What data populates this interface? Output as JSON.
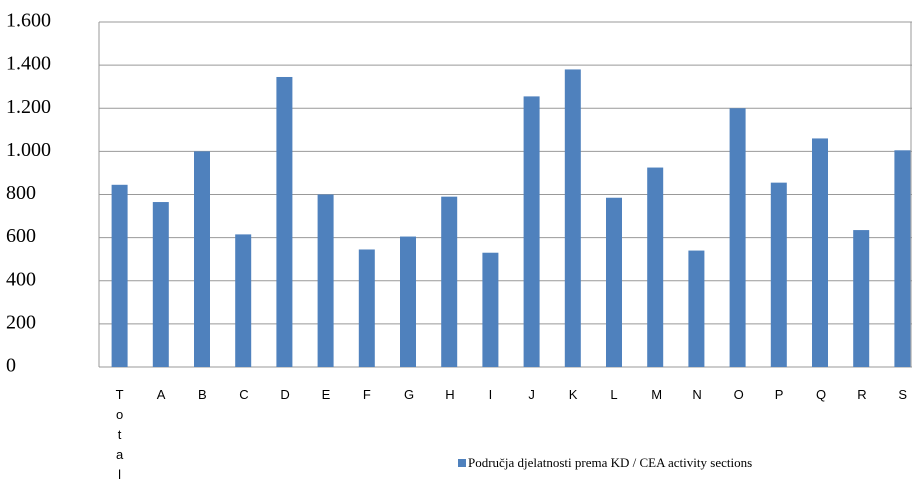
{
  "chart_data": {
    "type": "bar",
    "categories": [
      "Total",
      "A",
      "B",
      "C",
      "D",
      "E",
      "F",
      "G",
      "H",
      "I",
      "J",
      "K",
      "L",
      "M",
      "N",
      "O",
      "P",
      "Q",
      "R",
      "S"
    ],
    "series": [
      {
        "name": "Područja djelatnosti prema KD / CEA activity sections",
        "color": "#4f81bd",
        "values": [
          845,
          765,
          1000,
          615,
          1345,
          800,
          545,
          605,
          790,
          530,
          1255,
          1380,
          785,
          925,
          540,
          1200,
          855,
          1060,
          635,
          1005
        ]
      }
    ],
    "ylim": [
      0,
      1600
    ],
    "yticks": [
      0,
      200,
      400,
      600,
      800,
      {
        "value": 1000,
        "label": "1.000"
      },
      {
        "value": 1200,
        "label": "1.200"
      },
      {
        "value": 1400,
        "label": "1.400"
      },
      {
        "value": 1600,
        "label": "1.600"
      }
    ],
    "grid": true
  }
}
